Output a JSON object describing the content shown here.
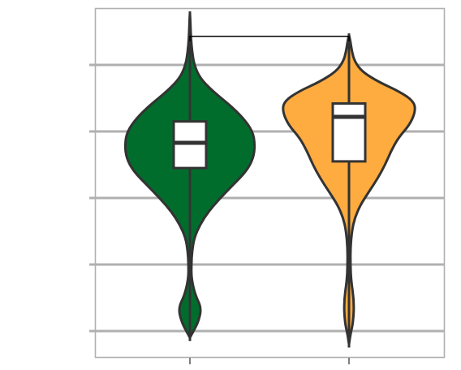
{
  "chart_data": {
    "type": "violin",
    "title": "",
    "xlabel": "",
    "ylabel": "",
    "tick_labels_shown": false,
    "ylim": [
      -0.42,
      4.43
    ],
    "yticks": [
      0,
      1,
      2,
      3,
      4
    ],
    "categories": [
      "",
      ""
    ],
    "grid": "horizontal",
    "series": [
      {
        "color": "#006d2c",
        "box": {
          "whisker_low": 1.35,
          "q1": 2.45,
          "median": 2.83,
          "q3": 3.15,
          "whisker_high": 4.43
        },
        "violin_min": -0.1,
        "violin_max": 4.78,
        "density": [
          [
            -0.1,
            0.0
          ],
          [
            0.0,
            0.05
          ],
          [
            0.15,
            0.12
          ],
          [
            0.35,
            0.16
          ],
          [
            0.55,
            0.07
          ],
          [
            0.8,
            0.02
          ],
          [
            1.0,
            0.02
          ],
          [
            1.2,
            0.03
          ],
          [
            1.4,
            0.06
          ],
          [
            1.6,
            0.14
          ],
          [
            1.8,
            0.26
          ],
          [
            2.0,
            0.42
          ],
          [
            2.2,
            0.6
          ],
          [
            2.4,
            0.78
          ],
          [
            2.6,
            0.88
          ],
          [
            2.8,
            0.9
          ],
          [
            3.0,
            0.87
          ],
          [
            3.2,
            0.74
          ],
          [
            3.4,
            0.55
          ],
          [
            3.6,
            0.32
          ],
          [
            3.8,
            0.14
          ],
          [
            4.0,
            0.06
          ],
          [
            4.2,
            0.03
          ],
          [
            4.4,
            0.015
          ],
          [
            4.6,
            0.008
          ],
          [
            4.78,
            0.0
          ]
        ]
      },
      {
        "color": "#feab3f",
        "box": {
          "whisker_low": 1.7,
          "q1": 2.55,
          "median": 3.22,
          "q3": 3.42,
          "whisker_high": 3.85
        },
        "violin_min": -0.2,
        "violin_max": 4.45,
        "density": [
          [
            -0.2,
            0.0
          ],
          [
            -0.05,
            0.02
          ],
          [
            0.15,
            0.06
          ],
          [
            0.45,
            0.07
          ],
          [
            0.75,
            0.03
          ],
          [
            1.0,
            0.02
          ],
          [
            1.25,
            0.02
          ],
          [
            1.5,
            0.04
          ],
          [
            1.7,
            0.08
          ],
          [
            1.9,
            0.16
          ],
          [
            2.1,
            0.28
          ],
          [
            2.3,
            0.4
          ],
          [
            2.5,
            0.5
          ],
          [
            2.7,
            0.58
          ],
          [
            2.9,
            0.68
          ],
          [
            3.1,
            0.84
          ],
          [
            3.3,
            0.92
          ],
          [
            3.45,
            0.9
          ],
          [
            3.6,
            0.7
          ],
          [
            3.75,
            0.4
          ],
          [
            3.9,
            0.18
          ],
          [
            4.05,
            0.08
          ],
          [
            4.2,
            0.04
          ],
          [
            4.35,
            0.02
          ],
          [
            4.45,
            0.0
          ]
        ]
      }
    ],
    "annotations": [
      {
        "type": "bracket",
        "between": [
          0,
          1
        ],
        "at_y": 4.43,
        "text": ""
      }
    ]
  }
}
